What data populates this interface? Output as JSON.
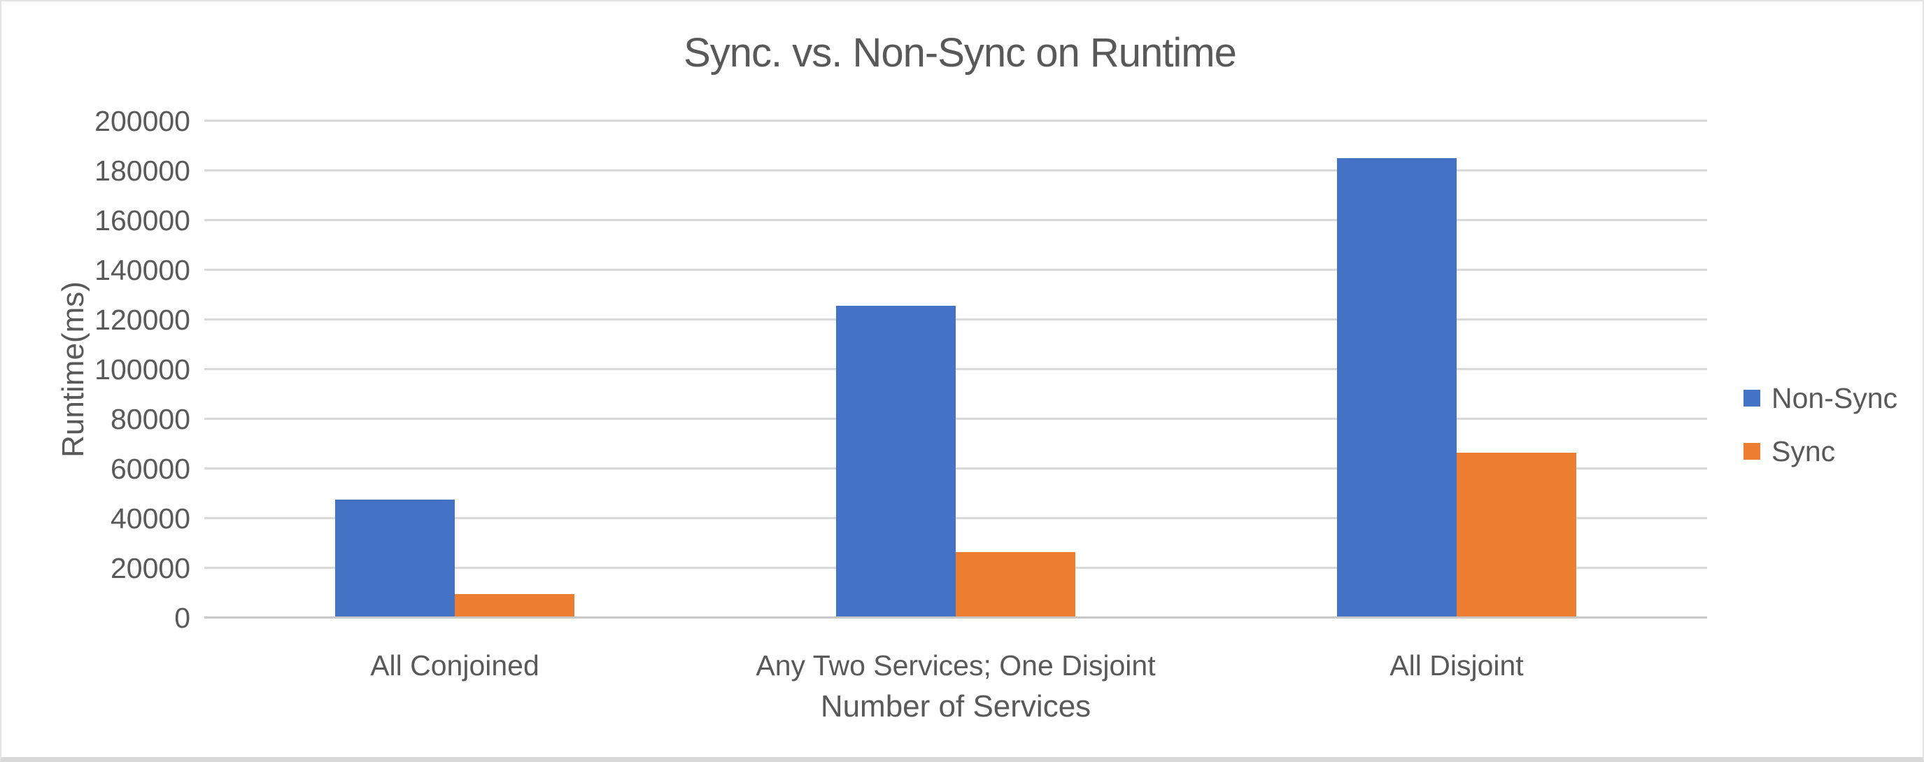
{
  "chart": {
    "title": "Sync. vs. Non-Sync on Runtime",
    "y_axis_title": "Runtime(ms)",
    "x_axis_title": "Number of Services"
  },
  "colors": {
    "non_sync_blue": "#4472C4",
    "sync_orange": "#ED7D31",
    "text_gray": "#595959",
    "gridline": "#D9D9D9",
    "zero_axis_line": "#C8C8C8",
    "frame_border": "#E4E4E4",
    "bottom_strip": "#D9D9D9",
    "background": "#FFFFFF"
  },
  "chart_data": {
    "type": "bar",
    "title": "Sync. vs. Non-Sync on Runtime",
    "xlabel": "Number of Services",
    "ylabel": "Runtime(ms)",
    "categories": [
      "All Conjoined",
      "Any Two Services; One Disjoint",
      "All Disjoint"
    ],
    "series": [
      {
        "name": "Non-Sync",
        "color": "#4472C4",
        "values": [
          47000,
          125000,
          184500
        ]
      },
      {
        "name": "Sync",
        "color": "#ED7D31",
        "values": [
          9000,
          26000,
          66000
        ]
      }
    ],
    "ylim": [
      0,
      200000
    ],
    "ytick_step": 20000,
    "ytick_labels": [
      "0",
      "20000",
      "40000",
      "60000",
      "80000",
      "100000",
      "120000",
      "140000",
      "160000",
      "180000",
      "200000"
    ],
    "grid": true,
    "legend_position": "right",
    "legend_entries": [
      "Non-Sync",
      "Sync"
    ]
  }
}
